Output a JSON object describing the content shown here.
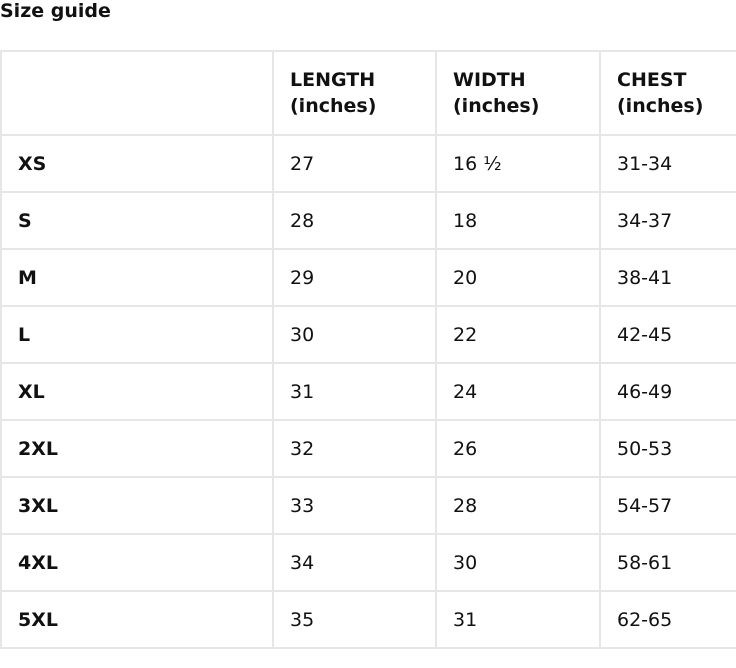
{
  "title": "Size guide",
  "table": {
    "headers": [
      "",
      "LENGTH\n(inches)",
      "WIDTH\n(inches)",
      "CHEST\n(inches)"
    ],
    "header_lines": [
      [
        "",
        ""
      ],
      [
        "LENGTH",
        "(inches)"
      ],
      [
        "WIDTH",
        "(inches)"
      ],
      [
        "CHEST",
        "(inches)"
      ]
    ],
    "rows": [
      [
        "XS",
        "27",
        "16 ½",
        "31-34"
      ],
      [
        "S",
        "28",
        "18",
        "34-37"
      ],
      [
        "M",
        "29",
        "20",
        "38-41"
      ],
      [
        "L",
        "30",
        "22",
        "42-45"
      ],
      [
        "XL",
        "31",
        "24",
        "46-49"
      ],
      [
        "2XL",
        "32",
        "26",
        "50-53"
      ],
      [
        "3XL",
        "33",
        "28",
        "54-57"
      ],
      [
        "4XL",
        "34",
        "30",
        "58-61"
      ],
      [
        "5XL",
        "35",
        "31",
        "62-65"
      ]
    ]
  }
}
